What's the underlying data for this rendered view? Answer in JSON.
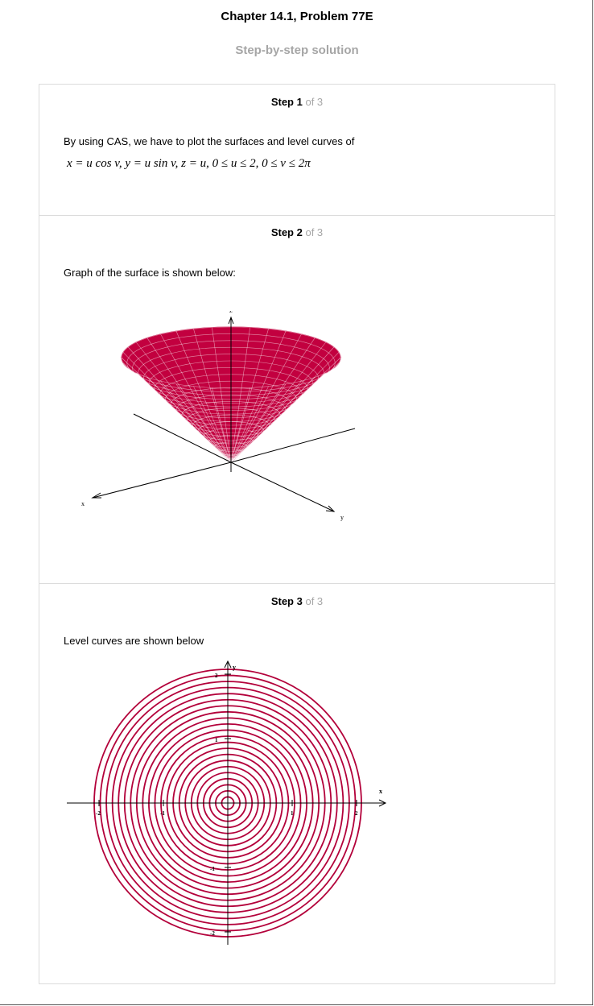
{
  "header": {
    "title": "Chapter 14.1, Problem 77E",
    "subtitle": "Step-by-step solution"
  },
  "steps": [
    {
      "label": "Step 1",
      "of": "of 3",
      "text": "By using CAS, we have to plot the surfaces and level curves of",
      "formula": "x = u cos v,  y = u sin v,  z = u,  0 ≤ u ≤ 2,  0 ≤ v ≤ 2π"
    },
    {
      "label": "Step 2",
      "of": "of 3",
      "text": "Graph of the surface is shown below:"
    },
    {
      "label": "Step 3",
      "of": "of 3",
      "text": "Level curves are shown below"
    }
  ],
  "surface_plot": {
    "axis_labels": {
      "x": "x",
      "y": "y",
      "z": "z"
    },
    "color": "#c2003f"
  },
  "level_curves": {
    "axis_labels": {
      "x": "x",
      "y": "y"
    },
    "tick_labels": {
      "x": [
        "-2",
        "-1",
        "1",
        "2"
      ],
      "y": [
        "2",
        "1",
        "-1",
        "-2"
      ]
    },
    "ring_count": 22,
    "color": "#b3003a"
  }
}
